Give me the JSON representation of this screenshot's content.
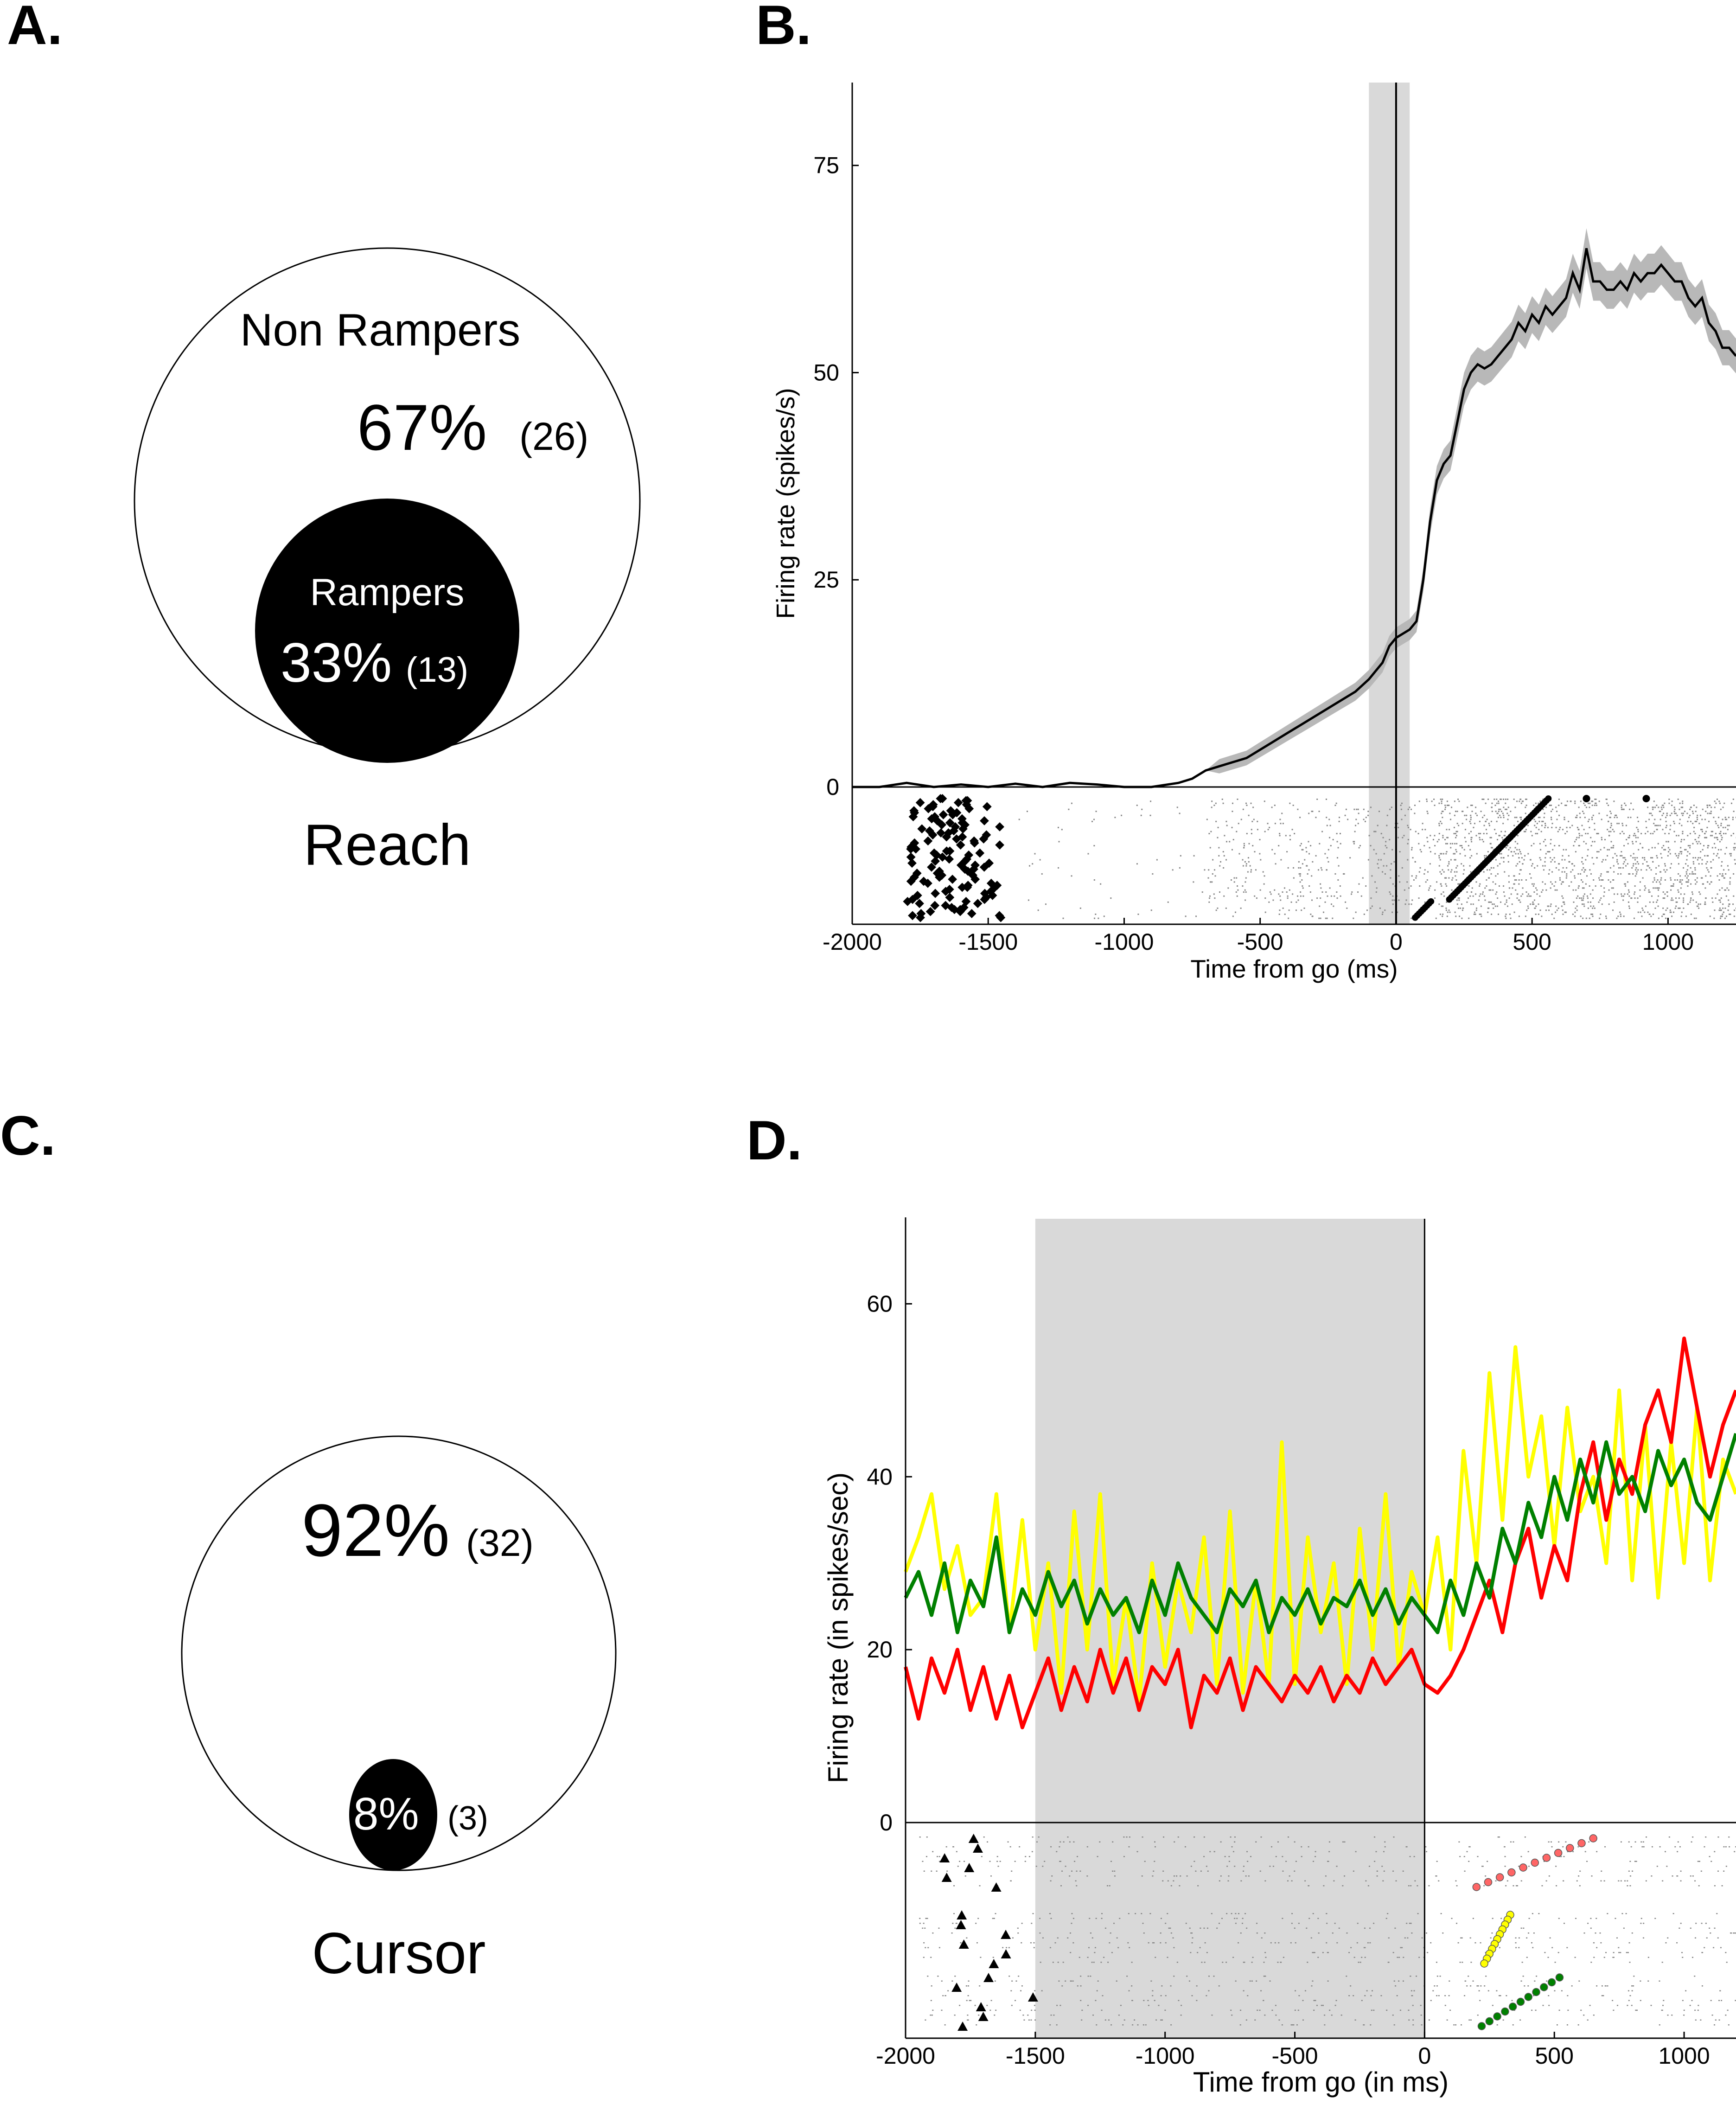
{
  "panels": {
    "a": {
      "label": "A.",
      "outer": {
        "name": "Non Rampers",
        "percent": "67%",
        "count": "(26)",
        "value": 26
      },
      "inner": {
        "name": "Rampers",
        "percent": "33%",
        "count": "(13)",
        "value": 13
      },
      "caption": "Reach"
    },
    "b": {
      "label": "B."
    },
    "c": {
      "label": "C.",
      "outer": {
        "percent": "92%",
        "count": "(32)",
        "value": 32
      },
      "inner": {
        "percent": "8%",
        "count": "(3)",
        "value": 3
      },
      "caption": "Cursor"
    },
    "d": {
      "label": "D."
    }
  },
  "chart_data": [
    {
      "type": "pie",
      "panel": "A",
      "labels": [
        "Non Rampers",
        "Rampers"
      ],
      "values": [
        26,
        13
      ],
      "percents": [
        67,
        33
      ],
      "caption": "Reach",
      "colors": [
        "#ffffff",
        "#000000"
      ]
    },
    {
      "type": "line",
      "panel": "B",
      "xlabel": "Time from go (ms)",
      "ylabel": "Firing rate (spikes/s)",
      "xlim": [
        -2000,
        1250
      ],
      "ylim": [
        0,
        85
      ],
      "xticks": [
        -2000,
        -1500,
        -1000,
        -500,
        0,
        500,
        1000
      ],
      "yticks": [
        0,
        25,
        50,
        75
      ],
      "shaded_interval": [
        -100,
        50
      ],
      "event_line": 0,
      "line_color": "#000000",
      "band_color": "#b8b8b8",
      "series": [
        {
          "x": [
            -2000,
            -1900,
            -1800,
            -1700,
            -1600,
            -1500,
            -1400,
            -1300,
            -1200,
            -1100,
            -1000,
            -900,
            -800,
            -750,
            -700,
            -650,
            -600,
            -550,
            -500,
            -450,
            -400,
            -350,
            -300,
            -250,
            -200,
            -150,
            -100,
            -75,
            -50,
            -25,
            0,
            25,
            50,
            75,
            100,
            125,
            150,
            175,
            200,
            225,
            250,
            275,
            300,
            325,
            350,
            375,
            400,
            425,
            450,
            475,
            500,
            525,
            550,
            575,
            600,
            625,
            650,
            675,
            700,
            725,
            750,
            775,
            800,
            825,
            850,
            875,
            900,
            925,
            950,
            975,
            1000,
            1025,
            1050,
            1075,
            1100,
            1125,
            1150,
            1175,
            1200,
            1225,
            1250
          ],
          "values": [
            0,
            0,
            0.5,
            0,
            0.3,
            0,
            0.4,
            0,
            0.5,
            0.3,
            0,
            0,
            0.5,
            1,
            2,
            2.5,
            3,
            3.5,
            4.5,
            5.5,
            6.5,
            7.5,
            8.5,
            9.5,
            10.5,
            11.5,
            13,
            14,
            15,
            17,
            18,
            18.5,
            19,
            20,
            25,
            32,
            37,
            39,
            40,
            44,
            48,
            50,
            51,
            50.5,
            51,
            52,
            53,
            54,
            56,
            55,
            57,
            56,
            58,
            57,
            58,
            59,
            62,
            60,
            65,
            61,
            61,
            60,
            60,
            61,
            60,
            62,
            61,
            62,
            62,
            63,
            62,
            61,
            61,
            59,
            58,
            59,
            56,
            55,
            53,
            53,
            52
          ]
        }
      ],
      "raster": {
        "rows": 60,
        "symbol": "diamond",
        "symbol_color": "#000000",
        "left_marker_x_range": [
          -1800,
          -1450
        ],
        "right_marker_x_range": [
          130,
          560
        ],
        "outliers_x": [
          700,
          920
        ],
        "spike_color": "#888888"
      }
    },
    {
      "type": "pie",
      "panel": "C",
      "labels": [
        "Non Rampers",
        "Rampers"
      ],
      "values": [
        32,
        3
      ],
      "percents": [
        92,
        8
      ],
      "caption": "Cursor",
      "colors": [
        "#ffffff",
        "#000000"
      ]
    },
    {
      "type": "line",
      "panel": "D",
      "xlabel": "Time from go (in ms)",
      "ylabel": "Firing rate (in spikes/sec)",
      "xlim": [
        -2000,
        1200
      ],
      "ylim": [
        0,
        70
      ],
      "xticks": [
        -2000,
        -1500,
        -1000,
        -500,
        0,
        500,
        1000
      ],
      "yticks": [
        0,
        20,
        40,
        60
      ],
      "shaded_interval": [
        -1500,
        0
      ],
      "event_line": 0,
      "series": [
        {
          "color": "#ffff00",
          "x": [
            -2000,
            -1950,
            -1900,
            -1850,
            -1800,
            -1750,
            -1700,
            -1650,
            -1600,
            -1550,
            -1500,
            -1450,
            -1400,
            -1350,
            -1300,
            -1250,
            -1200,
            -1150,
            -1100,
            -1050,
            -1000,
            -950,
            -900,
            -850,
            -800,
            -750,
            -700,
            -650,
            -600,
            -550,
            -500,
            -450,
            -400,
            -350,
            -300,
            -250,
            -200,
            -150,
            -100,
            -50,
            0,
            50,
            100,
            150,
            200,
            250,
            300,
            350,
            400,
            450,
            500,
            550,
            600,
            650,
            700,
            750,
            800,
            850,
            900,
            950,
            1000,
            1050,
            1100,
            1150,
            1200
          ],
          "values": [
            29,
            33,
            38,
            27,
            32,
            24,
            26,
            38,
            22,
            35,
            20,
            30,
            15,
            36,
            20,
            38,
            16,
            26,
            14,
            30,
            18,
            28,
            22,
            33,
            16,
            36,
            15,
            28,
            16,
            44,
            16,
            33,
            22,
            30,
            16,
            34,
            20,
            38,
            18,
            29,
            24,
            33,
            20,
            43,
            30,
            52,
            35,
            55,
            40,
            47,
            32,
            48,
            36,
            40,
            30,
            50,
            28,
            46,
            26,
            44,
            30,
            48,
            28,
            42,
            38
          ]
        },
        {
          "color": "#ff0000",
          "x": [
            -2000,
            -1950,
            -1900,
            -1850,
            -1800,
            -1750,
            -1700,
            -1650,
            -1600,
            -1550,
            -1500,
            -1450,
            -1400,
            -1350,
            -1300,
            -1250,
            -1200,
            -1150,
            -1100,
            -1050,
            -1000,
            -950,
            -900,
            -850,
            -800,
            -750,
            -700,
            -650,
            -600,
            -550,
            -500,
            -450,
            -400,
            -350,
            -300,
            -250,
            -200,
            -150,
            -100,
            -50,
            0,
            50,
            100,
            150,
            200,
            250,
            300,
            350,
            400,
            450,
            500,
            550,
            600,
            650,
            700,
            750,
            800,
            850,
            900,
            950,
            1000,
            1050,
            1100,
            1150,
            1200
          ],
          "values": [
            18,
            12,
            19,
            15,
            20,
            13,
            18,
            12,
            17,
            11,
            15,
            19,
            13,
            18,
            14,
            20,
            15,
            19,
            13,
            18,
            16,
            20,
            11,
            17,
            15,
            19,
            13,
            18,
            16,
            14,
            17,
            15,
            18,
            14,
            17,
            15,
            19,
            16,
            18,
            20,
            16,
            15,
            17,
            20,
            24,
            28,
            22,
            30,
            34,
            26,
            32,
            28,
            38,
            44,
            35,
            42,
            38,
            46,
            50,
            44,
            56,
            48,
            40,
            46,
            50
          ]
        },
        {
          "color": "#008000",
          "x": [
            -2000,
            -1950,
            -1900,
            -1850,
            -1800,
            -1750,
            -1700,
            -1650,
            -1600,
            -1550,
            -1500,
            -1450,
            -1400,
            -1350,
            -1300,
            -1250,
            -1200,
            -1150,
            -1100,
            -1050,
            -1000,
            -950,
            -900,
            -850,
            -800,
            -750,
            -700,
            -650,
            -600,
            -550,
            -500,
            -450,
            -400,
            -350,
            -300,
            -250,
            -200,
            -150,
            -100,
            -50,
            0,
            50,
            100,
            150,
            200,
            250,
            300,
            350,
            400,
            450,
            500,
            550,
            600,
            650,
            700,
            750,
            800,
            850,
            900,
            950,
            1000,
            1050,
            1100,
            1150,
            1200
          ],
          "values": [
            26,
            29,
            24,
            30,
            22,
            28,
            25,
            33,
            22,
            27,
            24,
            29,
            25,
            28,
            23,
            27,
            24,
            26,
            22,
            28,
            24,
            30,
            26,
            24,
            22,
            27,
            25,
            28,
            22,
            26,
            24,
            27,
            23,
            26,
            25,
            28,
            24,
            27,
            23,
            26,
            24,
            22,
            28,
            24,
            30,
            26,
            34,
            30,
            37,
            33,
            40,
            35,
            42,
            37,
            44,
            38,
            40,
            36,
            43,
            39,
            42,
            37,
            35,
            40,
            45
          ]
        }
      ],
      "raster": {
        "groups": [
          {
            "color": "#ff6666",
            "marker_x_range": [
              200,
              650
            ]
          },
          {
            "color": "#ffff00",
            "marker_x_range": [
              230,
              330
            ]
          },
          {
            "color": "#008000",
            "marker_x_range": [
              220,
              520
            ]
          }
        ],
        "left_symbol": "triangle",
        "left_marker_x_range": [
          -1850,
          -1500
        ],
        "spike_color": "#888888"
      }
    }
  ]
}
